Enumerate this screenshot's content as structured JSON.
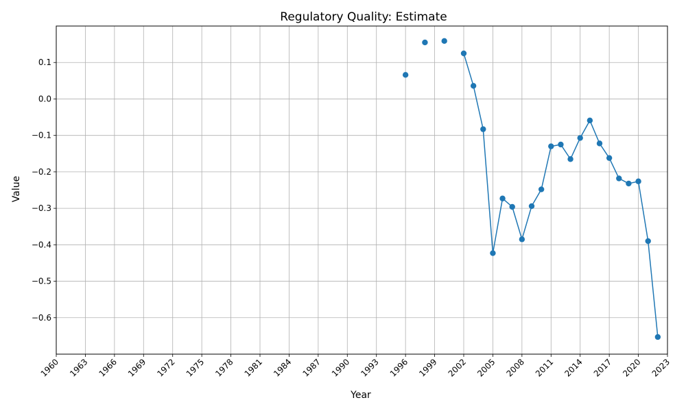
{
  "chart_data": {
    "type": "line",
    "title": "Regulatory Quality: Estimate",
    "xlabel": "Year",
    "ylabel": "Value",
    "xlim": [
      1960,
      2023
    ],
    "ylim": [
      -0.7,
      0.2
    ],
    "x_ticks": [
      1960,
      1963,
      1966,
      1969,
      1972,
      1975,
      1978,
      1981,
      1984,
      1987,
      1990,
      1993,
      1996,
      1999,
      2002,
      2005,
      2008,
      2011,
      2014,
      2017,
      2020,
      2023
    ],
    "y_ticks": [
      0.1,
      0.0,
      -0.1,
      -0.2,
      -0.3,
      -0.4,
      -0.5,
      -0.6
    ],
    "y_tick_labels": [
      "0.1",
      "0.0",
      "−0.1",
      "−0.2",
      "−0.3",
      "−0.4",
      "−0.5",
      "−0.6"
    ],
    "grid": true,
    "color": "#1f77b4",
    "series": [
      {
        "x": [
          1996,
          1998,
          2000,
          2002,
          2003,
          2004,
          2005,
          2006,
          2007,
          2008,
          2009,
          2010,
          2011,
          2012,
          2013,
          2014,
          2015,
          2016,
          2017,
          2018,
          2019,
          2020,
          2021,
          2022
        ],
        "values": [
          0.066,
          0.155,
          0.159,
          0.125,
          0.036,
          -0.083,
          -0.423,
          -0.273,
          -0.296,
          -0.385,
          -0.294,
          -0.248,
          -0.13,
          -0.125,
          -0.165,
          -0.107,
          -0.059,
          -0.122,
          -0.162,
          -0.218,
          -0.232,
          -0.226,
          -0.39,
          -0.653
        ]
      }
    ]
  }
}
